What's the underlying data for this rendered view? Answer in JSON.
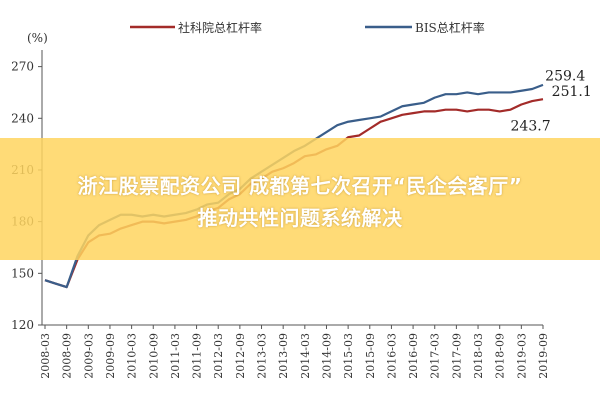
{
  "chart_data": {
    "type": "line",
    "ylabel": "(%)",
    "ylim": [
      120,
      275
    ],
    "yticks": [
      120,
      150,
      180,
      210,
      240,
      270
    ],
    "xlabels": [
      "2008-03",
      "2008-09",
      "2009-03",
      "2009-09",
      "2010-03",
      "2010-09",
      "2011-03",
      "2011-09",
      "2012-03",
      "2012-09",
      "2013-03",
      "2013-09",
      "2014-03",
      "2014-09",
      "2015-03",
      "2015-09",
      "2016-03",
      "2016-09",
      "2017-03",
      "2017-09",
      "2018-03",
      "2018-09",
      "2019-03",
      "2019-09"
    ],
    "x": [
      0,
      0.5,
      1,
      1.5,
      2,
      2.5,
      3,
      3.5,
      4,
      4.5,
      5,
      5.5,
      6,
      6.5,
      7,
      7.5,
      8,
      8.5,
      9,
      9.5,
      10,
      10.5,
      11,
      11.5,
      12,
      12.5,
      13,
      13.5,
      14,
      14.5,
      15,
      15.5,
      16,
      16.5,
      17,
      17.5,
      18,
      18.5,
      19,
      19.5,
      20,
      20.5,
      21,
      21.5,
      22,
      22.5,
      23
    ],
    "legend_position": "top",
    "series": [
      {
        "name": "社科院总杠杆率",
        "color": "#a32b29",
        "values": [
          146,
          144,
          142,
          158,
          168,
          172,
          173,
          176,
          178,
          180,
          180,
          179,
          180,
          181,
          183,
          186,
          188,
          193,
          196,
          202,
          205,
          209,
          211,
          214,
          218,
          219,
          222,
          224,
          229,
          230,
          234,
          238,
          240,
          242,
          243,
          244,
          244,
          245,
          245,
          244,
          245,
          245,
          244,
          245,
          248,
          250,
          251.1
        ]
      },
      {
        "name": "BIS总杠杆率",
        "color": "#3a5e8a",
        "values": [
          146,
          144,
          142,
          160,
          172,
          178,
          181,
          184,
          184,
          183,
          184,
          183,
          184,
          185,
          187,
          190,
          191,
          196,
          199,
          205,
          209,
          213,
          217,
          221,
          224,
          228,
          232,
          236,
          238,
          239,
          240,
          241,
          244,
          247,
          248,
          249,
          252,
          254,
          254,
          255,
          254,
          255,
          255,
          255,
          256,
          257,
          259.4
        ]
      }
    ],
    "annotations": [
      {
        "text": "259.4",
        "x": 23.1,
        "y": 262
      },
      {
        "text": "251.1",
        "x": 23.4,
        "y": 253
      },
      {
        "text": "243.7",
        "x": 21.5,
        "y": 233
      }
    ]
  },
  "banner": {
    "line1": "浙江股票配资公司 成都第七次召开“民企会客厅”",
    "line2": "推动共性问题系统解决"
  }
}
